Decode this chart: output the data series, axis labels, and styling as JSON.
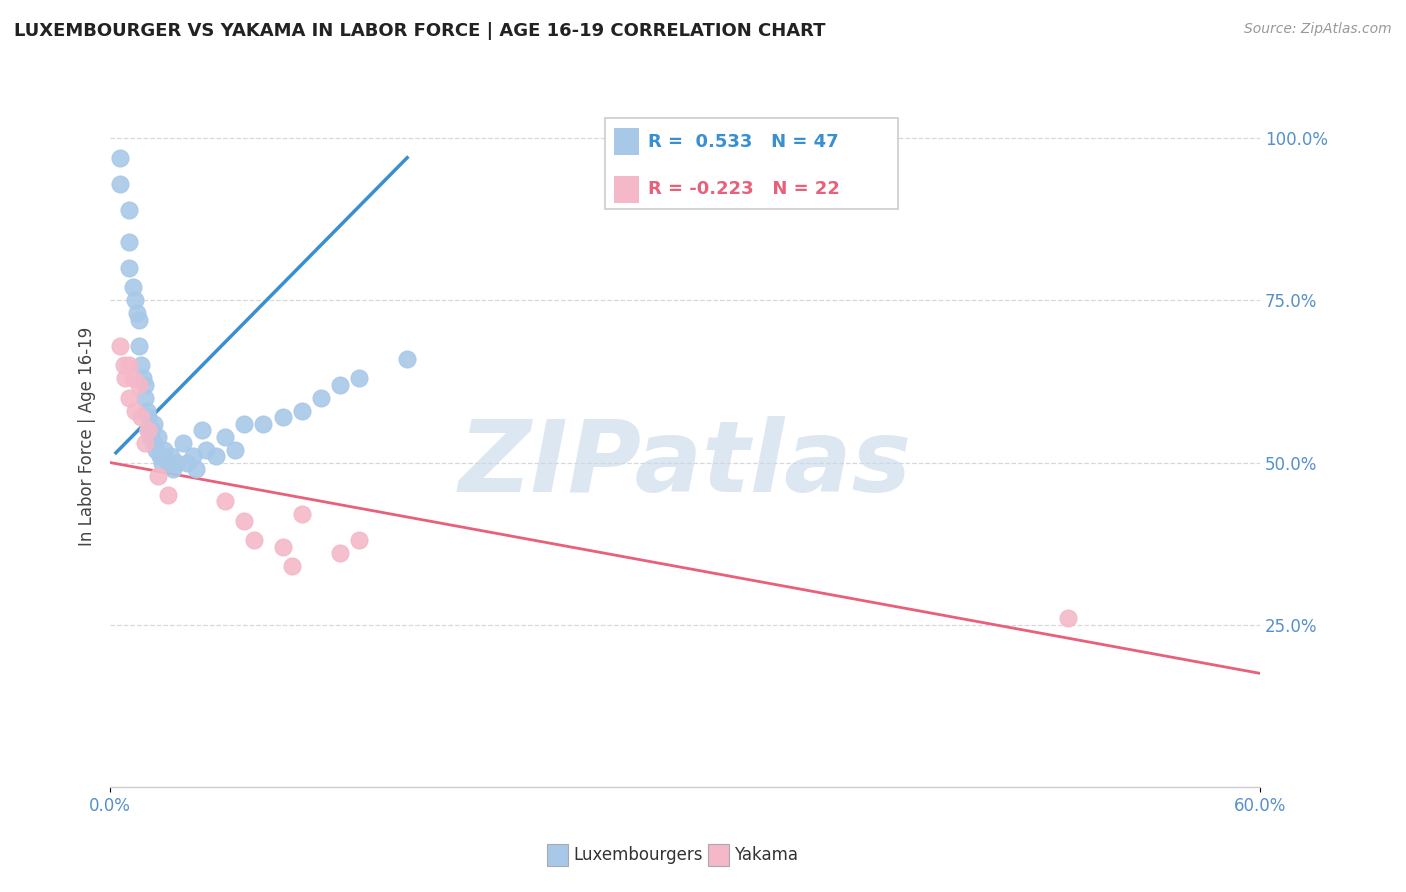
{
  "title": "LUXEMBOURGER VS YAKAMA IN LABOR FORCE | AGE 16-19 CORRELATION CHART",
  "source_text": "Source: ZipAtlas.com",
  "ylabel": "In Labor Force | Age 16-19",
  "xlim": [
    0.0,
    0.6
  ],
  "ylim": [
    0.0,
    1.08
  ],
  "ytick_right_labels": [
    "25.0%",
    "50.0%",
    "75.0%",
    "100.0%"
  ],
  "ytick_right_values": [
    0.25,
    0.5,
    0.75,
    1.0
  ],
  "blue_label": "Luxembourgers",
  "pink_label": "Yakama",
  "blue_color": "#a8c8e8",
  "pink_color": "#f4b8c8",
  "blue_line_color": "#3a8fd0",
  "pink_line_color": "#e8607a",
  "legend_r_blue": "R =  0.533",
  "legend_n_blue": "N = 47",
  "legend_r_pink": "R = -0.223",
  "legend_n_pink": "N = 22",
  "blue_x": [
    0.005,
    0.005,
    0.01,
    0.01,
    0.01,
    0.012,
    0.013,
    0.014,
    0.015,
    0.015,
    0.016,
    0.017,
    0.018,
    0.018,
    0.019,
    0.02,
    0.02,
    0.021,
    0.022,
    0.023,
    0.023,
    0.024,
    0.025,
    0.026,
    0.027,
    0.028,
    0.03,
    0.032,
    0.033,
    0.035,
    0.038,
    0.04,
    0.043,
    0.045,
    0.048,
    0.05,
    0.055,
    0.06,
    0.065,
    0.07,
    0.08,
    0.09,
    0.1,
    0.11,
    0.12,
    0.13,
    0.155
  ],
  "blue_y": [
    0.97,
    0.93,
    0.89,
    0.84,
    0.8,
    0.77,
    0.75,
    0.73,
    0.72,
    0.68,
    0.65,
    0.63,
    0.62,
    0.6,
    0.58,
    0.57,
    0.55,
    0.54,
    0.55,
    0.56,
    0.53,
    0.52,
    0.54,
    0.51,
    0.5,
    0.52,
    0.5,
    0.51,
    0.49,
    0.5,
    0.53,
    0.5,
    0.51,
    0.49,
    0.55,
    0.52,
    0.51,
    0.54,
    0.52,
    0.56,
    0.56,
    0.57,
    0.58,
    0.6,
    0.62,
    0.63,
    0.66
  ],
  "pink_x": [
    0.005,
    0.007,
    0.008,
    0.01,
    0.01,
    0.012,
    0.013,
    0.015,
    0.016,
    0.018,
    0.02,
    0.025,
    0.03,
    0.06,
    0.07,
    0.075,
    0.09,
    0.095,
    0.1,
    0.12,
    0.13,
    0.5
  ],
  "pink_y": [
    0.68,
    0.65,
    0.63,
    0.65,
    0.6,
    0.63,
    0.58,
    0.62,
    0.57,
    0.53,
    0.55,
    0.48,
    0.45,
    0.44,
    0.41,
    0.38,
    0.37,
    0.34,
    0.42,
    0.36,
    0.38,
    0.26
  ],
  "blue_line_x": [
    0.003,
    0.155
  ],
  "blue_line_y": [
    0.515,
    0.97
  ],
  "pink_line_x": [
    0.0,
    0.6
  ],
  "pink_line_y": [
    0.5,
    0.175
  ],
  "background_color": "#ffffff",
  "grid_color": "#d8d8d8",
  "watermark": "ZIPatlas",
  "watermark_color": "#c5d8ea"
}
